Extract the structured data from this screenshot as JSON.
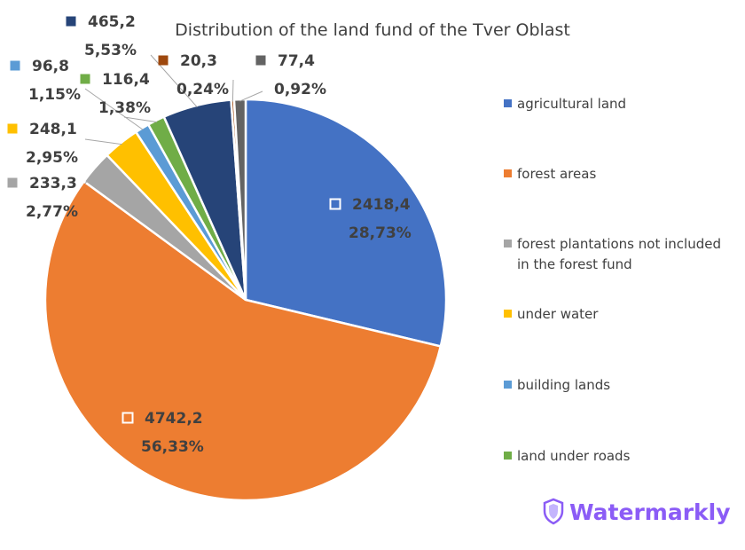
{
  "chart_data": {
    "type": "pie",
    "title": "Distribution of the land fund of the Tver Oblast",
    "slices": [
      {
        "label": "agricultural land",
        "value": 2418.4,
        "value_text": "2418,4",
        "percent_text": "28,73%",
        "color": "#4472c4"
      },
      {
        "label": "forest areas",
        "value": 4742.2,
        "value_text": "4742,2",
        "percent_text": "56,33%",
        "color": "#ed7d31"
      },
      {
        "label": "forest plantations not included in the forest fund",
        "value": 233.3,
        "value_text": "233,3",
        "percent_text": "2,77%",
        "color": "#a5a5a5"
      },
      {
        "label": "under water",
        "value": 248.1,
        "value_text": "248,1",
        "percent_text": "2,95%",
        "color": "#ffc000"
      },
      {
        "label": "building lands",
        "value": 96.8,
        "value_text": "96,8",
        "percent_text": "1,15%",
        "color": "#5b9bd5"
      },
      {
        "label": "land under roads",
        "value": 116.4,
        "value_text": "116,4",
        "percent_text": "1,38%",
        "color": "#70ad47"
      },
      {
        "label": "",
        "value": 465.2,
        "value_text": "465,2",
        "percent_text": "5,53%",
        "color": "#264478"
      },
      {
        "label": "",
        "value": 20.3,
        "value_text": "20,3",
        "percent_text": "0,24%",
        "color": "#9e480e"
      },
      {
        "label": "",
        "value": 77.4,
        "value_text": "77,4",
        "percent_text": "0,92%",
        "color": "#636363"
      }
    ],
    "legend": {
      "placement": "right",
      "line1": [
        "agricultural land",
        "forest areas",
        "forest plantations not included",
        "under water",
        "building lands",
        "land under roads"
      ],
      "line2": [
        "",
        "",
        "in the forest fund",
        "",
        "",
        ""
      ]
    }
  },
  "watermark": {
    "text": "Watermarkly",
    "color": "#8b5cf6",
    "icon": "shield-icon"
  }
}
